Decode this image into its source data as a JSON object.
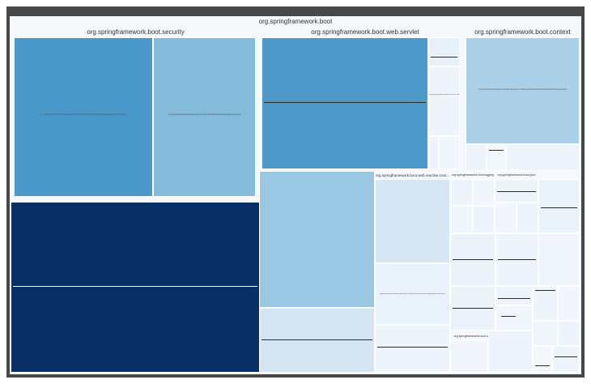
{
  "chart_data": {
    "type": "treemap",
    "title": "org.springframework.boot",
    "groups": [
      {
        "name": "org.springframework.boot.security",
        "nodes": [
          {
            "name": "org.springframework.boot.security.oauth2.client.servlet.OAuth2WebSecurityConfiguration.java",
            "color": "#4a97c9"
          },
          {
            "name": "org.springframework.boot.security.servlet.SecurityFilterAutoConfiguration.java",
            "color": "#84bada"
          }
        ]
      },
      {
        "name": "org.springframework.boot.web.servlet",
        "nodes": [
          {
            "name": "org.springframework.boot.web.servlet.ServletContextInitializerBeans.java",
            "color": "#4d99ca"
          },
          {
            "name": "FilterRegistrationBean.java",
            "color": "#e8f0fa"
          },
          {
            "name": "org.springframework.boot.web.servlet.support.ErrorPageFilter.java",
            "color": "#eef4fb"
          }
        ]
      },
      {
        "name": "org.springframework.boot.context",
        "nodes": [
          {
            "name": "org.springframework.boot.context.properties.ConfigurationPropertiesBindingPostProcessor.java",
            "color": "#acd0e7"
          },
          {
            "name": "PropertyMapper.java",
            "color": "#eef4fb"
          }
        ]
      },
      {
        "name": "",
        "nodes": [
          {
            "name": "org.springframework.boot.SpringApplication.java",
            "color": "#0a2e66"
          }
        ]
      },
      {
        "name": "",
        "nodes": [
          {
            "name": "org.springframework.boot.autoconfigure.jdbc.DataSourceInitializer.java",
            "color": "#9ac7e1"
          },
          {
            "name": "AutoConfigurationImportSelector.java",
            "color": "#d5e4f3"
          }
        ]
      },
      {
        "name": "org.springframework.boot.web.reactive.context",
        "nodes": [
          {
            "name": "org.springframework.boot.web.reactive.context.ReactiveWebServerApplicationContext.java",
            "color": "#d6e6f4"
          },
          {
            "name": "ConfigurationPropertySources.java",
            "color": "#e9f1fa"
          }
        ]
      },
      {
        "name": "org.springframework.boot.logging",
        "nodes": []
      },
      {
        "name": "org.springframework.boot.json",
        "nodes": []
      },
      {
        "name": "org.springframework.boot.web",
        "nodes": []
      }
    ]
  }
}
